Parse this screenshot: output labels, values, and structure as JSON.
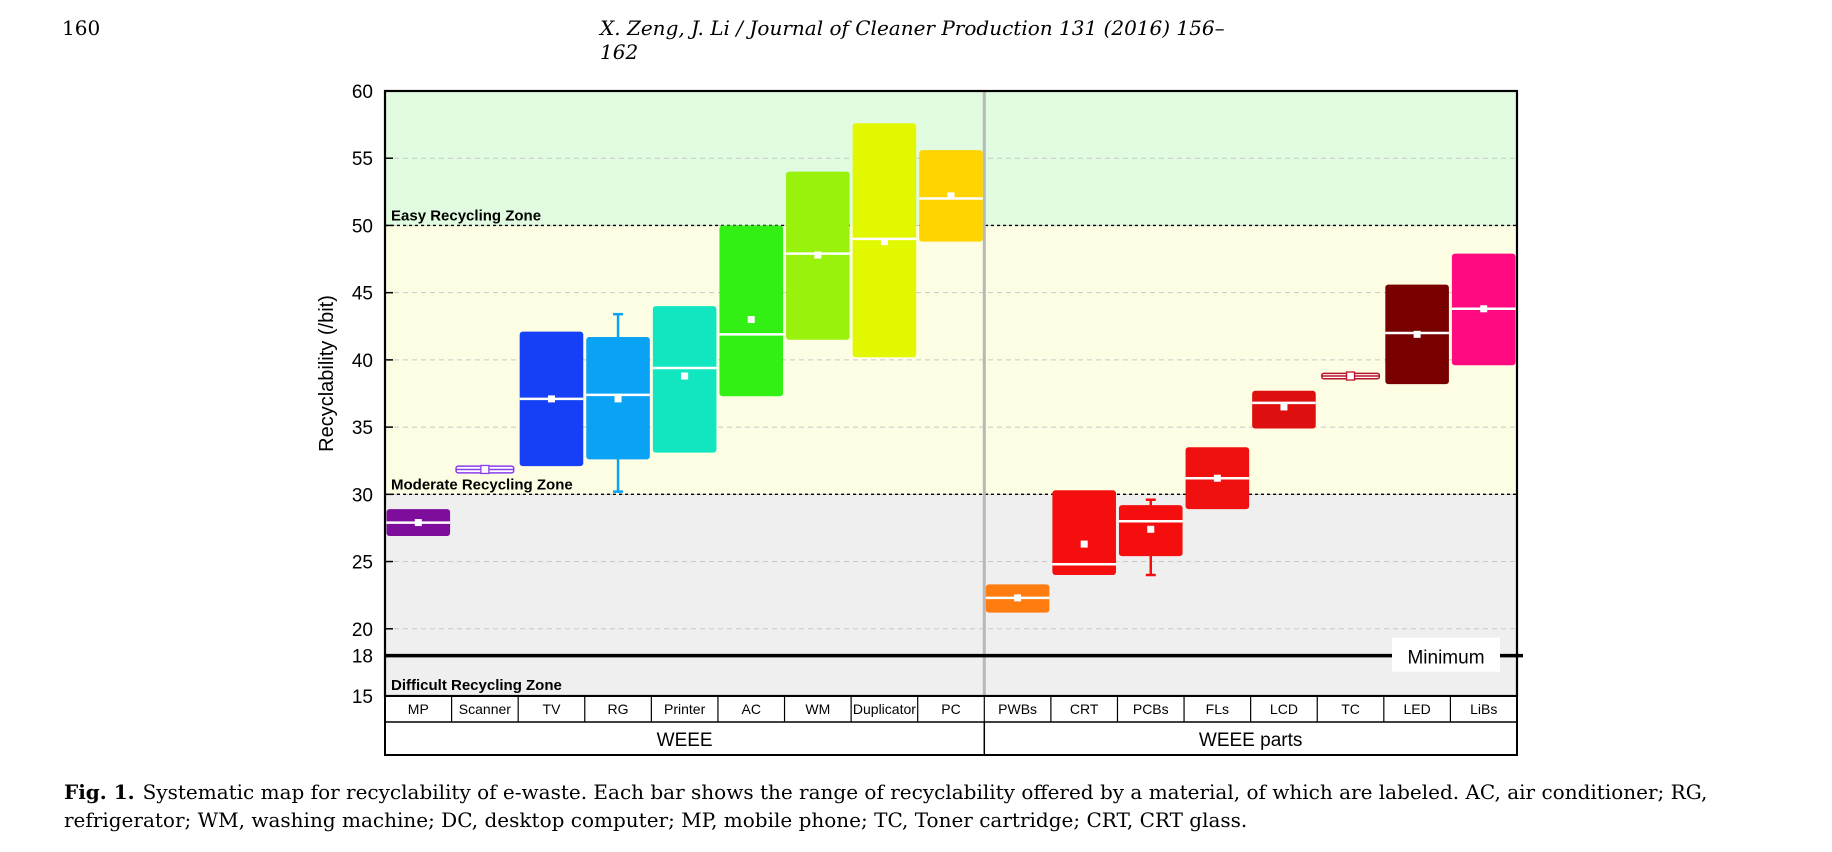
{
  "header": {
    "page_number": "160",
    "running_title": "X. Zeng, J. Li / Journal of Cleaner Production 131 (2016) 156–162"
  },
  "caption": {
    "label": "Fig. 1.",
    "text": "Systematic map for recyclability of e-waste. Each bar shows the range of recyclability offered by a material, of which are labeled. AC, air conditioner; RG, refrigerator; WM, washing machine; DC, desktop computer; MP, mobile phone; TC, Toner cartridge; CRT, CRT glass."
  },
  "chart_data": {
    "type": "box",
    "ylabel": "Recyclability (/bit)",
    "ylim": [
      15,
      60
    ],
    "yticks": [
      15,
      18,
      20,
      25,
      30,
      35,
      40,
      45,
      50,
      55,
      60
    ],
    "zones": [
      {
        "label": "Easy Recycling Zone",
        "from": 50,
        "to": 60,
        "color": "#e0fbe0"
      },
      {
        "label": "Moderate Recycling Zone",
        "from": 30,
        "to": 50,
        "color": "#fdfde3"
      },
      {
        "label": "Difficult Recycling Zone",
        "from": 15,
        "to": 30,
        "color": "#efefef"
      }
    ],
    "minimum_line": {
      "value": 18,
      "label": "Minimum"
    },
    "groups": [
      {
        "label": "WEEE",
        "categories": [
          "MP",
          "Scanner",
          "TV",
          "RG",
          "Printer",
          "AC",
          "WM",
          "Duplicator",
          "PC"
        ]
      },
      {
        "label": "WEEE parts",
        "categories": [
          "PWBs",
          "CRT",
          "PCBs",
          "FLs",
          "LCD",
          "TC",
          "LED",
          "LiBs"
        ]
      }
    ],
    "boxes": [
      {
        "category": "MP",
        "low": 26.9,
        "high": 28.9,
        "median": 27.9,
        "mean": 27.9,
        "color": "#7d0d9a"
      },
      {
        "category": "Scanner",
        "low": 31.6,
        "high": 32.1,
        "median": 31.85,
        "mean": 31.85,
        "color": "#8a3ef0",
        "hollow": true
      },
      {
        "category": "TV",
        "low": 32.1,
        "high": 42.1,
        "median": 37.1,
        "mean": 37.1,
        "color": "#1540f5"
      },
      {
        "category": "RG",
        "low": 32.6,
        "high": 41.7,
        "median": 37.4,
        "mean": 37.1,
        "whisker_low": 30.2,
        "whisker_high": 43.4,
        "color": "#0aa2f5"
      },
      {
        "category": "Printer",
        "low": 33.1,
        "high": 44.0,
        "median": 39.4,
        "mean": 38.8,
        "color": "#12e6c0"
      },
      {
        "category": "AC",
        "low": 37.3,
        "high": 50.0,
        "median": 41.9,
        "mean": 43.0,
        "color": "#33f014"
      },
      {
        "category": "WM",
        "low": 41.5,
        "high": 54.0,
        "median": 47.9,
        "mean": 47.8,
        "color": "#99f20c"
      },
      {
        "category": "Duplicator",
        "low": 40.2,
        "high": 57.6,
        "median": 49.0,
        "mean": 48.8,
        "color": "#e2f800"
      },
      {
        "category": "PC",
        "low": 48.8,
        "high": 55.6,
        "median": 52.0,
        "mean": 52.2,
        "color": "#ffd400"
      },
      {
        "category": "PWBs",
        "low": 21.2,
        "high": 23.3,
        "median": 22.3,
        "mean": 22.3,
        "color": "#ff7c11"
      },
      {
        "category": "CRT",
        "low": 24.0,
        "high": 30.3,
        "median": 24.8,
        "mean": 26.3,
        "color": "#f40e0e"
      },
      {
        "category": "PCBs",
        "low": 25.4,
        "high": 29.2,
        "median": 28.0,
        "mean": 27.4,
        "whisker_low": 24.0,
        "whisker_high": 29.6,
        "color": "#f40e0e"
      },
      {
        "category": "FLs",
        "low": 28.9,
        "high": 33.5,
        "median": 31.2,
        "mean": 31.2,
        "color": "#f01010"
      },
      {
        "category": "LCD",
        "low": 34.9,
        "high": 37.7,
        "median": 36.8,
        "mean": 36.5,
        "color": "#dd0f0f"
      },
      {
        "category": "TC",
        "low": 38.6,
        "high": 39.0,
        "median": 38.8,
        "mean": 38.8,
        "color": "#b8142a",
        "hollow": true
      },
      {
        "category": "LED",
        "low": 38.2,
        "high": 45.6,
        "median": 42.0,
        "mean": 41.9,
        "color": "#780000"
      },
      {
        "category": "LiBs",
        "low": 39.6,
        "high": 47.9,
        "median": 43.8,
        "mean": 43.8,
        "color": "#ff0a80"
      }
    ]
  }
}
